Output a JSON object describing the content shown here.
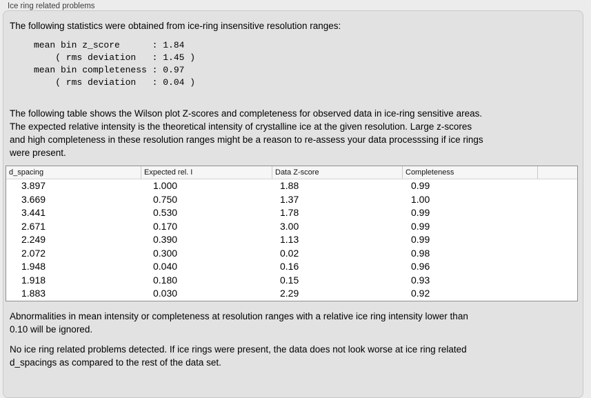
{
  "panel": {
    "title": "Ice ring related problems"
  },
  "colors": {
    "page_bg": "#ececec",
    "groupbox_bg": "#e2e2e2",
    "table_bg": "#ffffff",
    "table_header_bg": "#f6f6f6",
    "table_border": "#8f8f8f"
  },
  "intro": {
    "text": "The following statistics were obtained from ice-ring insensitive resolution ranges:",
    "stats_block": "mean bin z_score      : 1.84\n    ( rms deviation   : 1.45 )\nmean bin completeness : 0.97\n    ( rms deviation   : 0.04 )"
  },
  "description": {
    "lines": [
      "The following table shows the Wilson plot Z-scores and completeness for observed data in ice-ring sensitive areas.",
      "The expected relative intensity is the theoretical intensity of crystalline ice at the given resolution. Large z-scores",
      "and high completeness in these resolution ranges might be a reason to re-assess your data processsing if ice rings",
      "were present."
    ]
  },
  "table": {
    "columns": [
      "d_spacing",
      "Expected rel. I",
      "Data Z-score",
      "Completeness"
    ],
    "rows": [
      [
        "3.897",
        "1.000",
        "1.88",
        "0.99"
      ],
      [
        "3.669",
        "0.750",
        "1.37",
        "1.00"
      ],
      [
        "3.441",
        "0.530",
        "1.78",
        "0.99"
      ],
      [
        "2.671",
        "0.170",
        "3.00",
        "0.99"
      ],
      [
        "2.249",
        "0.390",
        "1.13",
        "0.99"
      ],
      [
        "2.072",
        "0.300",
        "0.02",
        "0.98"
      ],
      [
        "1.948",
        "0.040",
        "0.16",
        "0.96"
      ],
      [
        "1.918",
        "0.180",
        "0.15",
        "0.93"
      ],
      [
        "1.883",
        "0.030",
        "2.29",
        "0.92"
      ]
    ]
  },
  "footer": {
    "note_lines": [
      "Abnormalities in mean intensity or completeness at resolution ranges with a relative ice ring intensity lower than",
      "0.10 will be ignored."
    ],
    "conclusion_lines": [
      "No ice ring related problems detected. If ice rings were present, the data does not look worse at ice ring related",
      "d_spacings as compared to the rest of the data set."
    ]
  }
}
